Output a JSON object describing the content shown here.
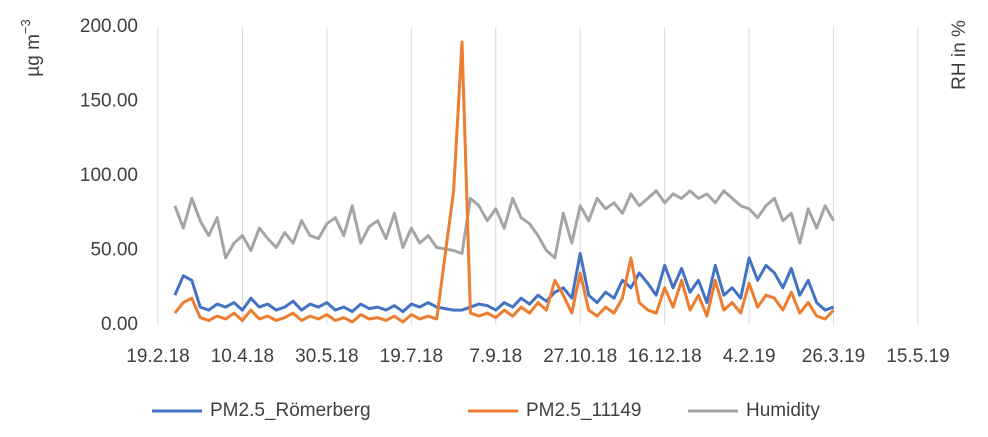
{
  "chart_data": {
    "type": "line",
    "y_label": "µg m",
    "y_label_sup": "−3",
    "y2_label": "RH in %",
    "x": [
      "2018-03-01",
      "2018-03-06",
      "2018-03-11",
      "2018-03-16",
      "2018-03-21",
      "2018-03-26",
      "2018-03-31",
      "2018-04-05",
      "2018-04-10",
      "2018-04-15",
      "2018-04-20",
      "2018-04-25",
      "2018-04-30",
      "2018-05-05",
      "2018-05-10",
      "2018-05-15",
      "2018-05-20",
      "2018-05-25",
      "2018-05-30",
      "2018-06-04",
      "2018-06-09",
      "2018-06-14",
      "2018-06-19",
      "2018-06-24",
      "2018-06-29",
      "2018-07-04",
      "2018-07-09",
      "2018-07-14",
      "2018-07-19",
      "2018-07-24",
      "2018-07-29",
      "2018-08-03",
      "2018-08-13",
      "2018-08-18",
      "2018-08-23",
      "2018-08-28",
      "2018-09-02",
      "2018-09-07",
      "2018-09-12",
      "2018-09-17",
      "2018-09-22",
      "2018-09-27",
      "2018-10-02",
      "2018-10-07",
      "2018-10-12",
      "2018-10-17",
      "2018-10-22",
      "2018-10-27",
      "2018-11-01",
      "2018-11-06",
      "2018-11-11",
      "2018-11-16",
      "2018-11-21",
      "2018-11-26",
      "2018-12-01",
      "2018-12-06",
      "2018-12-11",
      "2018-12-16",
      "2018-12-21",
      "2018-12-26",
      "2018-12-31",
      "2019-01-05",
      "2019-01-10",
      "2019-01-15",
      "2019-01-20",
      "2019-01-25",
      "2019-01-30",
      "2019-02-04",
      "2019-02-09",
      "2019-02-14",
      "2019-02-19",
      "2019-02-24",
      "2019-03-01",
      "2019-03-06",
      "2019-03-11",
      "2019-03-16",
      "2019-03-21",
      "2019-03-26"
    ],
    "series": [
      {
        "name": "PM2.5_Römerberg",
        "color": "#4472c4",
        "values": [
          20,
          33,
          30,
          12,
          10,
          14,
          12,
          15,
          10,
          18,
          12,
          14,
          10,
          12,
          16,
          10,
          14,
          12,
          15,
          10,
          12,
          9,
          14,
          11,
          12,
          10,
          13,
          9,
          14,
          12,
          15,
          12,
          10,
          10,
          12,
          14,
          13,
          10,
          15,
          12,
          18,
          14,
          20,
          16,
          22,
          25,
          18,
          48,
          20,
          15,
          22,
          18,
          30,
          25,
          35,
          28,
          20,
          40,
          25,
          38,
          22,
          30,
          15,
          40,
          20,
          25,
          18,
          45,
          30,
          40,
          35,
          25,
          38,
          20,
          30,
          15,
          10,
          12
        ]
      },
      {
        "name": "PM2.5_11149",
        "color": "#ed7d31",
        "values": [
          8,
          15,
          18,
          5,
          3,
          6,
          4,
          8,
          3,
          10,
          4,
          6,
          3,
          5,
          8,
          3,
          6,
          4,
          7,
          3,
          5,
          2,
          7,
          4,
          5,
          3,
          6,
          2,
          7,
          4,
          6,
          4,
          90,
          190,
          8,
          6,
          8,
          5,
          10,
          6,
          12,
          8,
          15,
          10,
          30,
          20,
          8,
          35,
          10,
          6,
          12,
          8,
          18,
          45,
          15,
          10,
          8,
          25,
          12,
          30,
          10,
          20,
          6,
          30,
          10,
          15,
          8,
          28,
          12,
          20,
          18,
          10,
          22,
          8,
          15,
          6,
          4,
          10
        ]
      },
      {
        "name": "Humidity",
        "color": "#a5a5a5",
        "values": [
          80,
          65,
          85,
          70,
          60,
          72,
          45,
          55,
          60,
          50,
          65,
          58,
          52,
          62,
          55,
          70,
          60,
          58,
          68,
          72,
          60,
          80,
          55,
          66,
          70,
          58,
          75,
          52,
          65,
          55,
          60,
          52,
          50,
          48,
          85,
          80,
          70,
          78,
          65,
          85,
          72,
          68,
          60,
          50,
          45,
          75,
          55,
          80,
          70,
          85,
          78,
          82,
          75,
          88,
          80,
          85,
          90,
          82,
          88,
          85,
          90,
          85,
          88,
          82,
          90,
          85,
          80,
          78,
          72,
          80,
          85,
          70,
          75,
          55,
          78,
          65,
          80,
          70
        ]
      }
    ],
    "xlim": [
      "2018-02-19",
      "2019-05-15"
    ],
    "xticks": [
      {
        "value": "2018-02-19",
        "label": "19.2.18"
      },
      {
        "value": "2018-04-10",
        "label": "10.4.18"
      },
      {
        "value": "2018-05-30",
        "label": "30.5.18"
      },
      {
        "value": "2018-07-19",
        "label": "19.7.18"
      },
      {
        "value": "2018-09-07",
        "label": "7.9.18"
      },
      {
        "value": "2018-10-27",
        "label": "27.10.18"
      },
      {
        "value": "2018-12-16",
        "label": "16.12.18"
      },
      {
        "value": "2019-02-04",
        "label": "4.2.19"
      },
      {
        "value": "2019-03-26",
        "label": "26.3.19"
      },
      {
        "value": "2019-05-15",
        "label": "15.5.19"
      }
    ],
    "ylim": [
      0,
      200
    ],
    "yticks": [
      {
        "value": 0,
        "label": "0.00"
      },
      {
        "value": 50,
        "label": "50.00"
      },
      {
        "value": 100,
        "label": "100.00"
      },
      {
        "value": 150,
        "label": "150.00"
      },
      {
        "value": 200,
        "label": "200.00"
      }
    ],
    "grid": "x",
    "legend": "bottom"
  }
}
